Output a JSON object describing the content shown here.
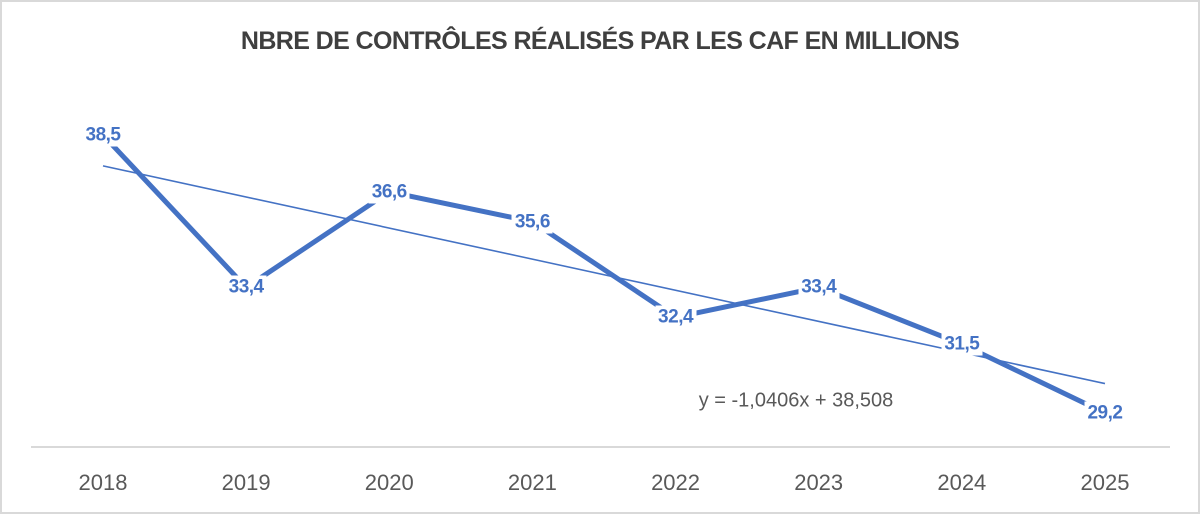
{
  "colors": {
    "series": "#4472C4",
    "data_label_text": "#4472C4",
    "trendline": "#4472C4",
    "axis_line": "#D9D9D9",
    "axis_text": "#595959",
    "title_text": "#3F3F3F",
    "equation_text": "#595959",
    "background": "#FFFFFF",
    "frame_border": "#D9D9D9"
  },
  "chart_data": {
    "type": "line",
    "title": "NBRE DE CONTRÔLES RÉALISÉS PAR LES CAF EN MILLIONS",
    "categories": [
      "2018",
      "2019",
      "2020",
      "2021",
      "2022",
      "2023",
      "2024",
      "2025"
    ],
    "values": [
      38.5,
      33.4,
      36.6,
      35.6,
      32.4,
      33.4,
      31.5,
      29.2
    ],
    "value_labels": [
      "38,5",
      "33,4",
      "36,6",
      "35,6",
      "32,4",
      "33,4",
      "31,5",
      "29,2"
    ],
    "xlabel": "",
    "ylabel": "",
    "legend": false,
    "grid": false,
    "y_axis_visible": false,
    "data_label_position": "center-on-point",
    "trendline": {
      "type": "linear",
      "slope": -1.0406,
      "intercept": 38.508,
      "label": "y = -1,0406x + 38,508",
      "x_domain": [
        1,
        8
      ]
    }
  }
}
